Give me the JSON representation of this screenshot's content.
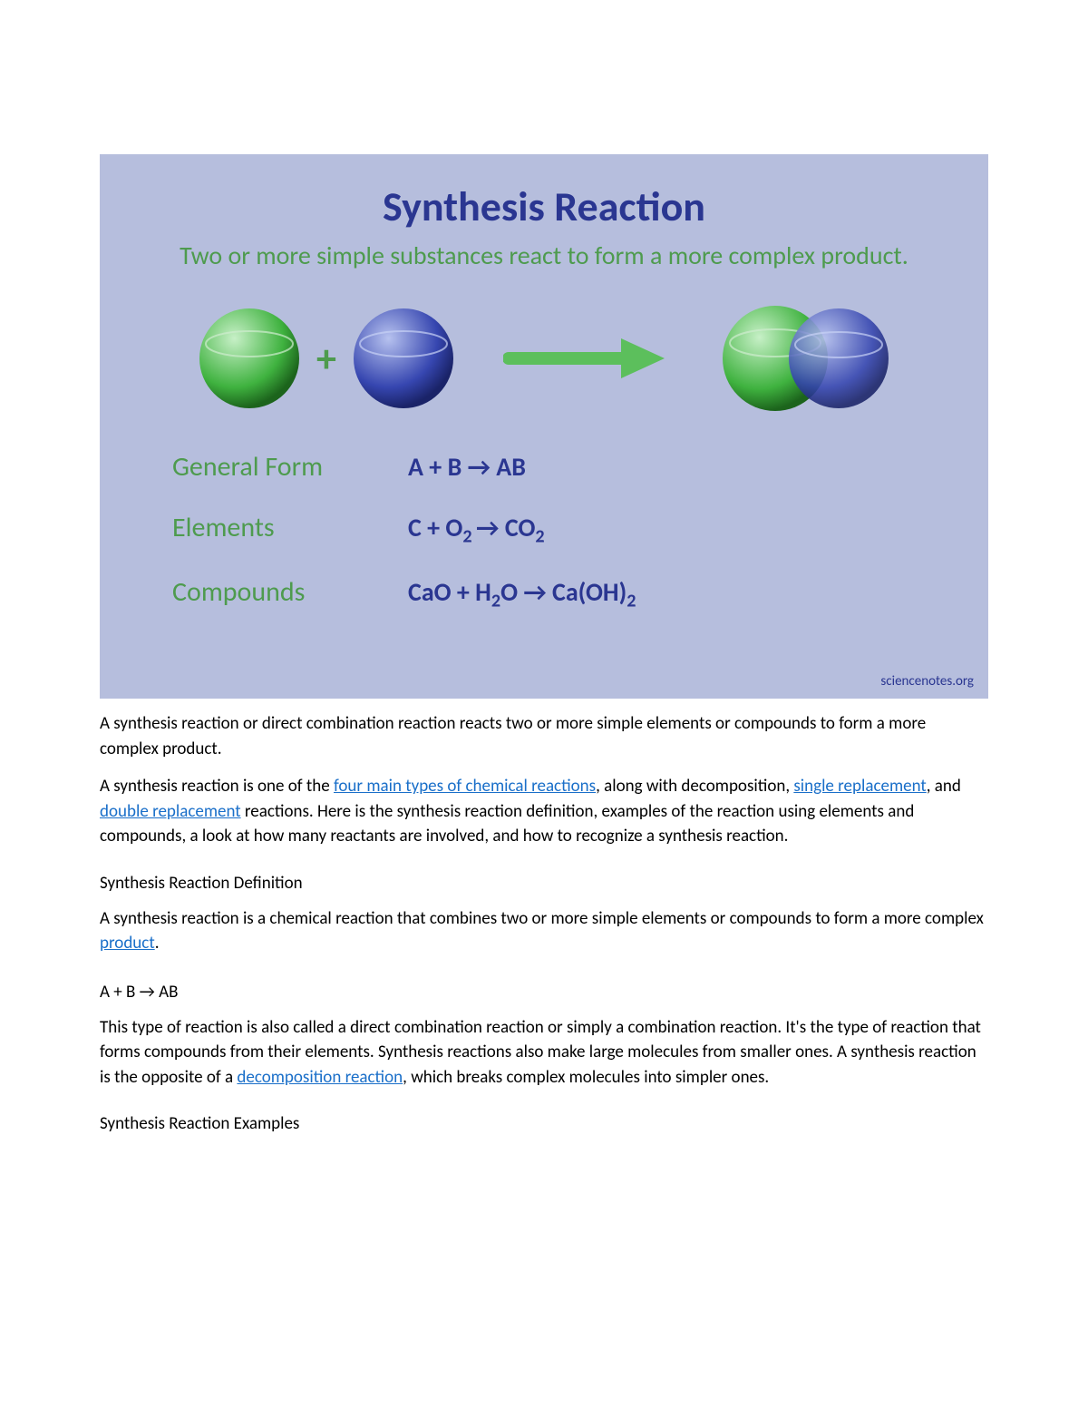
{
  "infographic": {
    "background_color": "#b6bedd",
    "title": "Synthesis Reaction",
    "title_color": "#2a3691",
    "title_fontsize": 46,
    "subtitle": "Two or more simple substances react to form a more complex product.",
    "subtitle_color": "#4e9b4e",
    "subtitle_fontsize": 28,
    "sphere_green": {
      "fill": "#3fb23f",
      "highlight": "#c7f0c7"
    },
    "sphere_blue": {
      "fill": "#3646b0",
      "highlight": "#b7c2ef"
    },
    "plus_color": "#4e9b4e",
    "arrow_color": "#5cbf5c",
    "label_color": "#4e9b4e",
    "equation_color": "#2a3691",
    "rows": [
      {
        "label": "General Form",
        "equation_html": "A + B → AB"
      },
      {
        "label": "Elements",
        "equation_html": "C + O<sub>2 </sub>→ CO<sub>2</sub>"
      },
      {
        "label": "Compounds",
        "equation_html": "CaO + H<sub>2</sub>O → Ca(OH)<sub>2</sub>"
      }
    ],
    "attribution": "sciencenotes.org",
    "attribution_color": "#2a3691"
  },
  "link_color": "#1a6fc9",
  "paragraphs": {
    "p1": "A synthesis reaction or direct combination reaction reacts two or more simple elements or compounds to form a more complex product.",
    "p2_parts": {
      "t1": "A synthesis reaction is one of the ",
      "link1": "four main types of chemical reactions",
      "t2": ", along with decomposition, ",
      "link2": "single replacement",
      "t3": ", and ",
      "link3": "double replacement",
      "t4": " reactions. Here is the synthesis reaction definition, examples of the reaction using elements and compounds, a look at how many reactants are involved, and how to recognize a synthesis reaction."
    },
    "h1": "Synthesis Reaction Definition",
    "p3_parts": {
      "t1": "A synthesis reaction is a chemical reaction that combines two or more simple elements or compounds to form a more complex ",
      "link1": "product",
      "t2": "."
    },
    "eq": "A + B → AB",
    "p4_parts": {
      "t1": "This type of reaction is also called a direct combination reaction or simply a combination reaction. It's the type of reaction that forms compounds from their elements. Synthesis reactions also make large molecules from smaller ones. A synthesis reaction is the opposite of a ",
      "link1": "decomposition reaction",
      "t2": ", which breaks complex molecules into simpler ones."
    },
    "h2": "Synthesis Reaction Examples"
  }
}
